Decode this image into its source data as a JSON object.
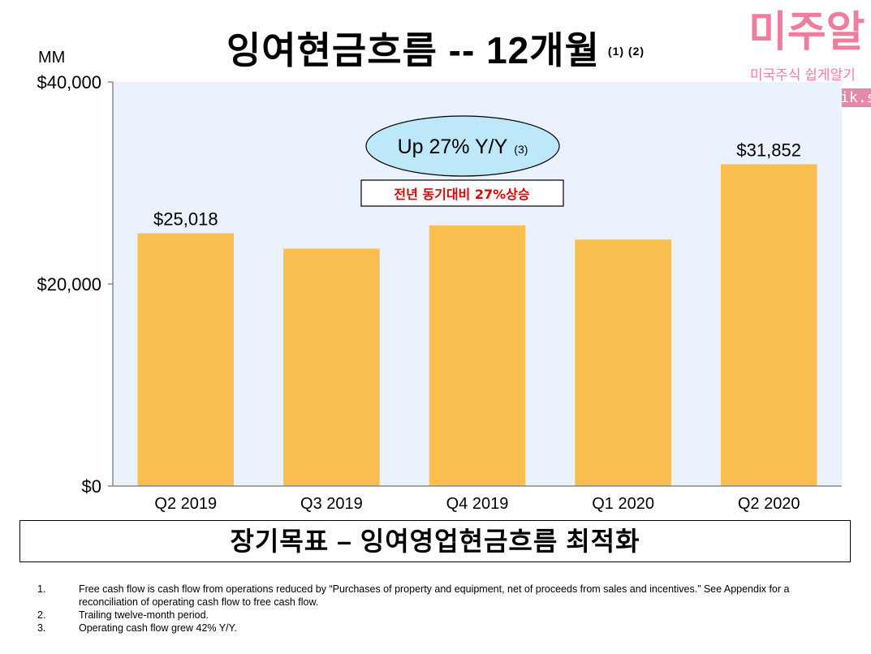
{
  "title": {
    "text": "잉여현금흐름 -- 12개월",
    "footnote_refs": "(1) (2)"
  },
  "unit_label": "MM",
  "brand": {
    "name": "미주알",
    "tagline": "미국주식 쉽게알기",
    "url": "https://jusik.shop"
  },
  "chart_data": {
    "type": "bar",
    "title": "잉여현금흐름 -- 12개월",
    "ylabel": "MM",
    "xlabel": "",
    "categories": [
      "Q2 2019",
      "Q3 2019",
      "Q4 2019",
      "Q1 2020",
      "Q2 2020"
    ],
    "values": [
      25018,
      23500,
      25800,
      24400,
      31852
    ],
    "data_labels": [
      "$25,018",
      "",
      "",
      "",
      "$31,852"
    ],
    "ylim": [
      0,
      40000
    ],
    "yticks": [
      0,
      20000,
      40000
    ],
    "ytick_labels": [
      "$0",
      "$20,000",
      "$40,000"
    ],
    "grid": false,
    "colors": {
      "bar": "#f9be4e",
      "plot_bg": "#eaf2fd",
      "axis": "#888888"
    },
    "annotation": {
      "text": "Up 27% Y/Y",
      "ref": "(3)",
      "fill": "#bde8f9"
    },
    "annotation_korean": {
      "text": "전년 동기대비 27%상승",
      "color": "#e00000"
    }
  },
  "banner": {
    "text": "장기목표 – 잉여영업현금흐름 최적화"
  },
  "footnotes": [
    {
      "num": "1.",
      "text": "Free cash flow is cash flow from operations reduced by “Purchases of property and equipment, net of proceeds from sales and incentives.” See Appendix for a reconciliation of operating cash flow to free cash flow."
    },
    {
      "num": "2.",
      "text": "Trailing twelve-month period."
    },
    {
      "num": "3.",
      "text": "Operating cash flow grew 42% Y/Y."
    }
  ]
}
